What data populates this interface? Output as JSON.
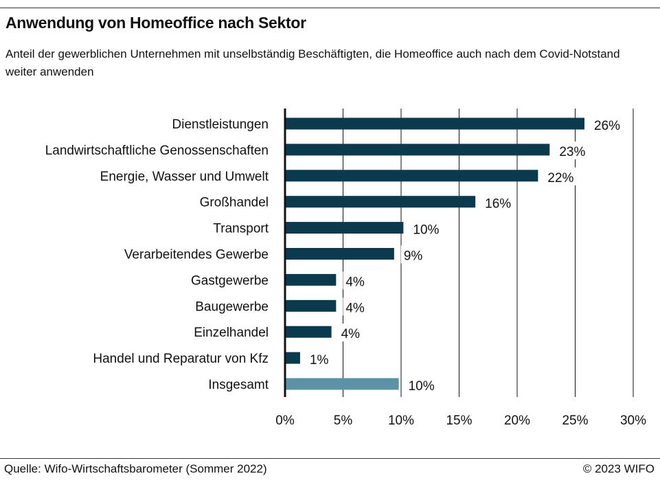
{
  "header": {
    "title": "Anwendung von Homeoffice nach Sektor",
    "subtitle": "Anteil der gewerblichen Unternehmen mit unselbständig Beschäftigten, die Homeoffice auch nach dem Covid-Notstand weiter anwenden"
  },
  "footer": {
    "source": "Quelle: Wifo-Wirtschaftsbarometer (Sommer 2022)",
    "copyright": "© 2023 WIFO"
  },
  "chart_data": {
    "type": "bar",
    "orientation": "horizontal",
    "categories": [
      "Dienstleistungen",
      "Landwirtschaftliche Genossenschaften",
      "Energie, Wasser und Umwelt",
      "Großhandel",
      "Transport",
      "Verarbeitendes Gewerbe",
      "Gastgewerbe",
      "Baugewerbe",
      "Einzelhandel",
      "Handel und Reparatur von Kfz",
      "Insgesamt"
    ],
    "values": [
      25.8,
      22.8,
      21.8,
      16.4,
      10.2,
      9.4,
      4.4,
      4.4,
      4.0,
      1.3,
      9.8
    ],
    "value_labels": [
      "26%",
      "23%",
      "22%",
      "16%",
      "10%",
      "9%",
      "4%",
      "4%",
      "4%",
      "1%",
      "10%"
    ],
    "colors": [
      "#0b3a4f",
      "#0b3a4f",
      "#0b3a4f",
      "#0b3a4f",
      "#0b3a4f",
      "#0b3a4f",
      "#0b3a4f",
      "#0b3a4f",
      "#0b3a4f",
      "#0b3a4f",
      "#5b92a6"
    ],
    "xlim": [
      0,
      30
    ],
    "xticks": [
      0,
      5,
      10,
      15,
      20,
      25,
      30
    ],
    "xtick_labels": [
      "0%",
      "5%",
      "10%",
      "15%",
      "20%",
      "25%",
      "30%"
    ],
    "grid": true,
    "legend": false
  }
}
